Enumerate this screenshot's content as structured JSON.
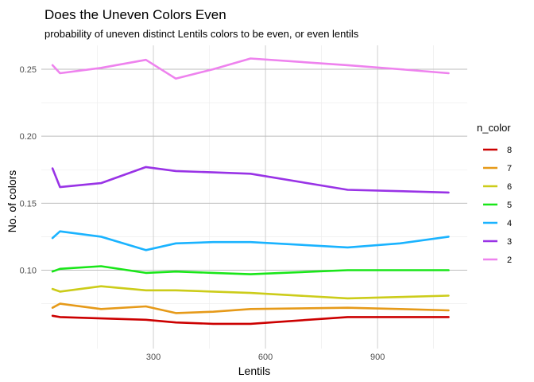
{
  "chart_data": {
    "type": "line",
    "title": "Does the Uneven Colors Even",
    "subtitle": "probability of uneven distinct Lentils colors to be even, or even lentils",
    "xlabel": "Lentils",
    "ylabel": "No. of colors",
    "xlim": [
      0,
      1140
    ],
    "ylim": [
      0.0415,
      0.2678
    ],
    "x_ticks": [
      300,
      600,
      900
    ],
    "x_tick_labels": [
      "300",
      "600",
      "900"
    ],
    "y_ticks": [
      0.1,
      0.15,
      0.2,
      0.25
    ],
    "y_tick_labels": [
      "0.10",
      "0.15",
      "0.20",
      "0.25"
    ],
    "grid": true,
    "legend": {
      "title": "n_color",
      "position": "right"
    },
    "series": [
      {
        "name": "8",
        "color": "#cc0000",
        "x": [
          30,
          50,
          160,
          280,
          360,
          460,
          560,
          820,
          960,
          1090
        ],
        "y": [
          0.066,
          0.065,
          0.064,
          0.063,
          0.061,
          0.06,
          0.06,
          0.065,
          0.065,
          0.065
        ]
      },
      {
        "name": "7",
        "color": "#e69a19",
        "x": [
          30,
          50,
          160,
          280,
          360,
          460,
          560,
          820,
          960,
          1090
        ],
        "y": [
          0.072,
          0.075,
          0.071,
          0.073,
          0.068,
          0.069,
          0.071,
          0.072,
          0.071,
          0.07
        ]
      },
      {
        "name": "6",
        "color": "#cccc1a",
        "x": [
          30,
          50,
          160,
          280,
          360,
          460,
          560,
          820,
          960,
          1090
        ],
        "y": [
          0.086,
          0.084,
          0.088,
          0.085,
          0.085,
          0.084,
          0.083,
          0.079,
          0.08,
          0.081
        ]
      },
      {
        "name": "5",
        "color": "#19e619",
        "x": [
          30,
          50,
          160,
          280,
          360,
          460,
          560,
          820,
          960,
          1090
        ],
        "y": [
          0.099,
          0.101,
          0.103,
          0.098,
          0.099,
          0.098,
          0.097,
          0.1,
          0.1,
          0.1
        ]
      },
      {
        "name": "4",
        "color": "#1ab3ff",
        "x": [
          30,
          50,
          160,
          280,
          360,
          460,
          560,
          820,
          960,
          1090
        ],
        "y": [
          0.124,
          0.129,
          0.125,
          0.115,
          0.12,
          0.121,
          0.121,
          0.117,
          0.12,
          0.125
        ]
      },
      {
        "name": "3",
        "color": "#9933e6",
        "x": [
          30,
          50,
          160,
          280,
          360,
          460,
          560,
          820,
          960,
          1090
        ],
        "y": [
          0.176,
          0.162,
          0.165,
          0.177,
          0.174,
          0.173,
          0.172,
          0.16,
          0.159,
          0.158
        ]
      },
      {
        "name": "2",
        "color": "#ee82ee",
        "x": [
          30,
          50,
          160,
          280,
          360,
          460,
          560,
          820,
          960,
          1090
        ],
        "y": [
          0.253,
          0.247,
          0.251,
          0.257,
          0.243,
          0.25,
          0.258,
          0.253,
          0.25,
          0.247
        ]
      }
    ]
  }
}
